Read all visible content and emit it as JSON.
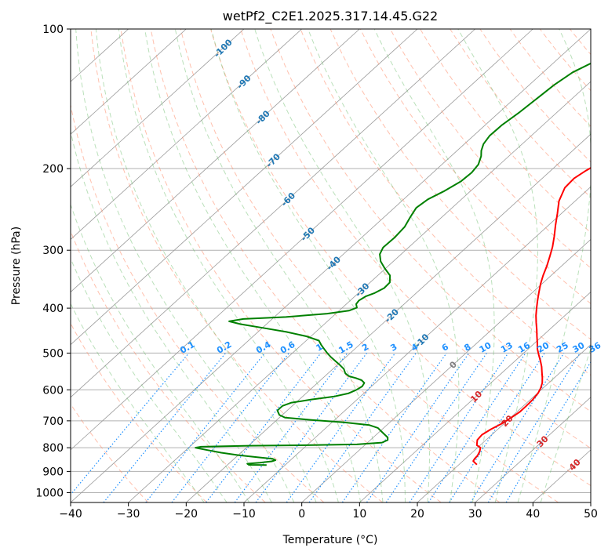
{
  "chart_data": {
    "type": "line",
    "subtype": "skew-t log-p",
    "title": "wetPf2_C2E1.2025.317.14.45.G22",
    "xlabel": "Temperature (°C)",
    "ylabel": "Pressure (hPa)",
    "xlim": [
      -40,
      50
    ],
    "ylim": [
      1050,
      100
    ],
    "y_scale": "log",
    "grid": true,
    "x_ticks": [
      "−40",
      "−30",
      "−20",
      "−10",
      "0",
      "10",
      "20",
      "30",
      "40",
      "50"
    ],
    "y_ticks": [
      "100",
      "200",
      "300",
      "400",
      "500",
      "600",
      "700",
      "800",
      "900",
      "1000"
    ],
    "y_tick_values": [
      100,
      200,
      300,
      400,
      500,
      600,
      700,
      800,
      900,
      1000
    ],
    "isotherm_labels": [
      "-100",
      "-90",
      "-80",
      "-70",
      "-60",
      "-50",
      "-40",
      "-30",
      "-20",
      "-10",
      "0",
      "10",
      "20",
      "30",
      "40"
    ],
    "isotherm_values": [
      -100,
      -90,
      -80,
      -70,
      -60,
      -50,
      -40,
      -30,
      -20,
      -10,
      0,
      10,
      20,
      30,
      40
    ],
    "mixing_ratio_labels": [
      "0.1",
      "0.2",
      "0.4",
      "0.6",
      "1",
      "1.5",
      "2",
      "3",
      "4",
      "6",
      "8",
      "10",
      "13",
      "16",
      "20",
      "25",
      "30",
      "36"
    ],
    "mixing_ratio_values": [
      0.1,
      0.2,
      0.4,
      0.6,
      1,
      1.5,
      2,
      3,
      4,
      6,
      8,
      10,
      13,
      16,
      20,
      25,
      30,
      36
    ],
    "colors": {
      "temperature": "#ff0000",
      "dewpoint": "#008000",
      "isotherm_label": "#1f77b4",
      "isotherm_label_warm": "#d62728",
      "isotherm_label_zero": "#808080",
      "mixing_ratio": "#1e90ff",
      "dry_adiabat": "#ff8c69",
      "moist_adiabat": "#66bb66",
      "skewed_isotherm": "#9a9a9a",
      "isobar": "#b0b0b0"
    },
    "series": [
      {
        "name": "",
        "role": "temperature",
        "points": [
          [
            23.1,
            870
          ],
          [
            22.4,
            862
          ],
          [
            21.8,
            855
          ],
          [
            21.6,
            845
          ],
          [
            21.5,
            832
          ],
          [
            21.1,
            815
          ],
          [
            20.5,
            800
          ],
          [
            19.4,
            790
          ],
          [
            18.5,
            770
          ],
          [
            18.3,
            750
          ],
          [
            18.8,
            730
          ],
          [
            19.6,
            710
          ],
          [
            20.1,
            690
          ],
          [
            20.5,
            670
          ],
          [
            20.5,
            650
          ],
          [
            20.4,
            630
          ],
          [
            20.1,
            610
          ],
          [
            19.6,
            595
          ],
          [
            18.9,
            580
          ],
          [
            17.9,
            565
          ],
          [
            16.8,
            550
          ],
          [
            15.7,
            535
          ],
          [
            14.4,
            520
          ],
          [
            13.0,
            505
          ],
          [
            11.6,
            490
          ],
          [
            10.4,
            475
          ],
          [
            9.1,
            460
          ],
          [
            7.8,
            445
          ],
          [
            6.4,
            430
          ],
          [
            5.0,
            415
          ],
          [
            3.7,
            400
          ],
          [
            2.4,
            385
          ],
          [
            1.1,
            370
          ],
          [
            -0.2,
            355
          ],
          [
            -1.4,
            340
          ],
          [
            -2.5,
            325
          ],
          [
            -3.8,
            310
          ],
          [
            -5.2,
            295
          ],
          [
            -6.9,
            280
          ],
          [
            -8.8,
            265
          ],
          [
            -10.7,
            250
          ],
          [
            -12.8,
            235
          ],
          [
            -14.3,
            220
          ],
          [
            -14.5,
            210
          ],
          [
            -13.9,
            202
          ],
          [
            -13.1,
            195
          ],
          [
            -12.4,
            188
          ],
          [
            -12.0,
            180
          ],
          [
            -12.2,
            170
          ],
          [
            -13.1,
            160
          ],
          [
            -14.1,
            150
          ],
          [
            -15.5,
            140
          ],
          [
            -17.5,
            130
          ],
          [
            -19.8,
            120
          ],
          [
            -22.7,
            110
          ],
          [
            -25.2,
            103
          ],
          [
            -27.0,
            100
          ]
        ]
      },
      {
        "name": "",
        "role": "dewpoint",
        "points": [
          [
            -13.2,
            872
          ],
          [
            -16.3,
            871
          ],
          [
            -16.8,
            866
          ],
          [
            -14.8,
            862
          ],
          [
            -13.0,
            856
          ],
          [
            -12.6,
            851
          ],
          [
            -13.4,
            845
          ],
          [
            -16.5,
            838
          ],
          [
            -20.0,
            830
          ],
          [
            -23.4,
            820
          ],
          [
            -26.7,
            808
          ],
          [
            -28.8,
            800
          ],
          [
            -28.0,
            796
          ],
          [
            -20.0,
            792
          ],
          [
            -10.0,
            790
          ],
          [
            -1.5,
            787
          ],
          [
            2.5,
            780
          ],
          [
            3.0,
            770
          ],
          [
            2.5,
            760
          ],
          [
            1.5,
            750
          ],
          [
            0.2,
            737
          ],
          [
            -1.0,
            725
          ],
          [
            -3.0,
            715
          ],
          [
            -8.0,
            705
          ],
          [
            -14.0,
            697
          ],
          [
            -19.0,
            689
          ],
          [
            -20.5,
            680
          ],
          [
            -21.7,
            665
          ],
          [
            -21.7,
            650
          ],
          [
            -20.8,
            640
          ],
          [
            -18.0,
            630
          ],
          [
            -14.5,
            620
          ],
          [
            -12.7,
            611
          ],
          [
            -12.0,
            601
          ],
          [
            -11.6,
            590
          ],
          [
            -11.9,
            580
          ],
          [
            -12.9,
            572
          ],
          [
            -14.3,
            566
          ],
          [
            -15.8,
            561
          ],
          [
            -17.0,
            553
          ],
          [
            -18.1,
            541
          ],
          [
            -19.6,
            530
          ],
          [
            -21.1,
            520
          ],
          [
            -22.6,
            510
          ],
          [
            -24.0,
            500
          ],
          [
            -25.3,
            490
          ],
          [
            -26.6,
            480
          ],
          [
            -27.8,
            470
          ],
          [
            -30.8,
            460
          ],
          [
            -35.1,
            450
          ],
          [
            -40.0,
            441
          ],
          [
            -44.5,
            433
          ],
          [
            -47.0,
            427
          ],
          [
            -45.0,
            422
          ],
          [
            -38.0,
            418
          ],
          [
            -31.5,
            411
          ],
          [
            -28.3,
            405
          ],
          [
            -27.5,
            399
          ],
          [
            -28.3,
            392
          ],
          [
            -28.5,
            385
          ],
          [
            -28.1,
            377
          ],
          [
            -27.2,
            371
          ],
          [
            -26.5,
            362
          ],
          [
            -26.6,
            352
          ],
          [
            -27.9,
            340
          ],
          [
            -30.2,
            328
          ],
          [
            -32.2,
            317
          ],
          [
            -33.7,
            306
          ],
          [
            -34.4,
            296
          ],
          [
            -34.3,
            282
          ],
          [
            -34.6,
            267
          ],
          [
            -35.5,
            254
          ],
          [
            -36.2,
            243
          ],
          [
            -35.8,
            233
          ],
          [
            -34.6,
            224
          ],
          [
            -33.5,
            213
          ],
          [
            -33.3,
            204
          ],
          [
            -33.7,
            196
          ],
          [
            -34.8,
            188
          ],
          [
            -35.8,
            183
          ],
          [
            -36.7,
            177
          ],
          [
            -37.2,
            170
          ],
          [
            -37.1,
            161
          ],
          [
            -36.5,
            151
          ],
          [
            -36.1,
            141
          ],
          [
            -35.7,
            132
          ],
          [
            -34.9,
            124
          ],
          [
            -33.3,
            118
          ],
          [
            -31.6,
            113
          ],
          [
            -29.9,
            108
          ],
          [
            -28.2,
            103
          ],
          [
            -27.1,
            100
          ]
        ]
      }
    ]
  }
}
